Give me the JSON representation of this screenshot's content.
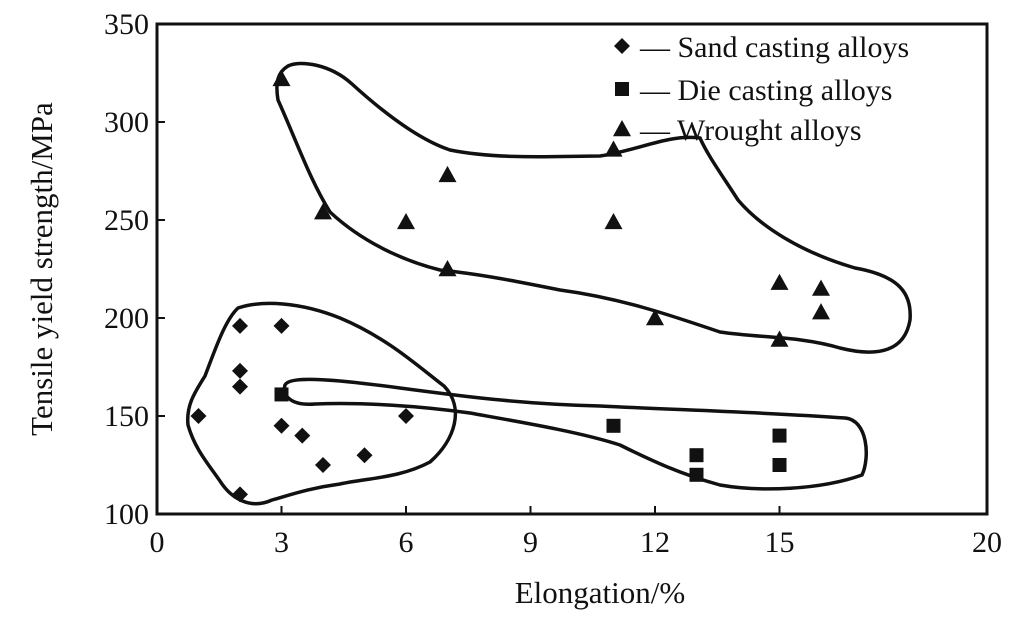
{
  "chart_data": {
    "type": "scatter",
    "xlabel": "Elongation/%",
    "ylabel": "Tensile yield strength/MPa",
    "xlim": [
      0,
      20
    ],
    "ylim": [
      100,
      350
    ],
    "xticks": [
      0,
      3,
      6,
      9,
      12,
      15,
      20
    ],
    "yticks": [
      100,
      150,
      200,
      250,
      300,
      350
    ],
    "grid": false,
    "legend_position": "top-right",
    "colors": {
      "marker": "#111111",
      "axis": "#111111",
      "background": "#ffffff"
    },
    "series": [
      {
        "name": "Sand casting alloys",
        "legend_label": "— Sand casting alloys",
        "marker": "diamond",
        "points": [
          {
            "x": 1,
            "y": 150
          },
          {
            "x": 2,
            "y": 196
          },
          {
            "x": 2,
            "y": 173
          },
          {
            "x": 2,
            "y": 165
          },
          {
            "x": 2,
            "y": 110
          },
          {
            "x": 3,
            "y": 196
          },
          {
            "x": 3,
            "y": 145
          },
          {
            "x": 3.5,
            "y": 140
          },
          {
            "x": 4,
            "y": 125
          },
          {
            "x": 5,
            "y": 130
          },
          {
            "x": 6,
            "y": 150
          }
        ]
      },
      {
        "name": "Die casting alloys",
        "legend_label": "— Die casting alloys",
        "marker": "square",
        "points": [
          {
            "x": 3,
            "y": 161
          },
          {
            "x": 11,
            "y": 145
          },
          {
            "x": 13,
            "y": 130
          },
          {
            "x": 13,
            "y": 120
          },
          {
            "x": 15,
            "y": 140
          },
          {
            "x": 15,
            "y": 125
          }
        ]
      },
      {
        "name": "Wrought alloys",
        "legend_label": "— Wrought alloys",
        "marker": "triangle",
        "points": [
          {
            "x": 3,
            "y": 322
          },
          {
            "x": 4,
            "y": 254
          },
          {
            "x": 6,
            "y": 249
          },
          {
            "x": 7,
            "y": 273
          },
          {
            "x": 7,
            "y": 225
          },
          {
            "x": 11,
            "y": 286
          },
          {
            "x": 11,
            "y": 249
          },
          {
            "x": 12,
            "y": 200
          },
          {
            "x": 15,
            "y": 218
          },
          {
            "x": 15,
            "y": 189
          },
          {
            "x": 16,
            "y": 215
          },
          {
            "x": 16,
            "y": 203
          }
        ]
      }
    ]
  }
}
